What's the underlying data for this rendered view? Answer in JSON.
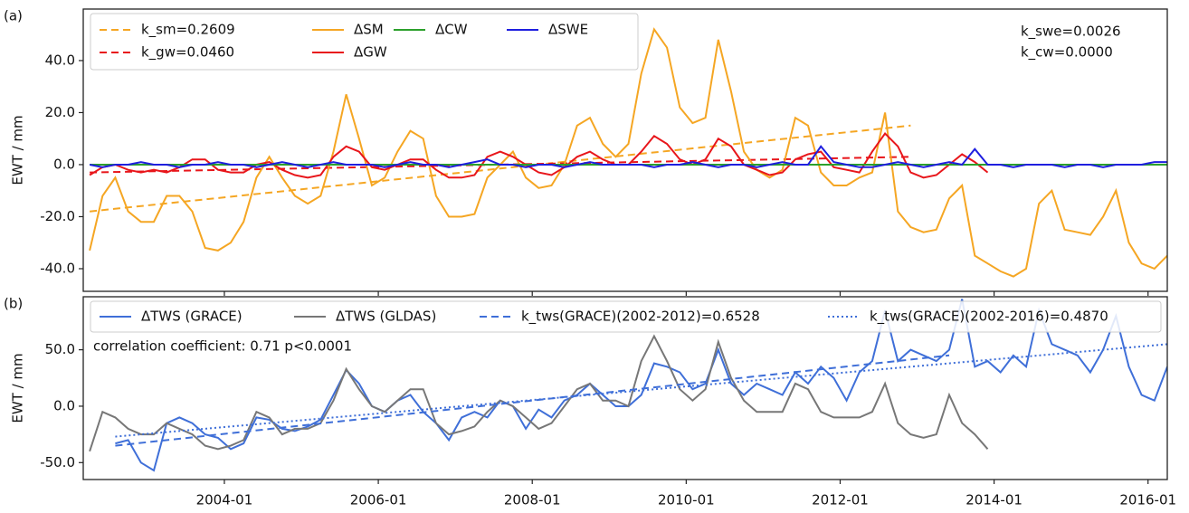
{
  "chart_data": [
    {
      "type": "line",
      "label": "(a)",
      "y_label": "EWT / mm",
      "x": [
        "2002-04",
        "2002-06",
        "2002-08",
        "2002-10",
        "2002-12",
        "2003-02",
        "2003-04",
        "2003-06",
        "2003-08",
        "2003-10",
        "2003-12",
        "2004-02",
        "2004-04",
        "2004-06",
        "2004-08",
        "2004-10",
        "2004-12",
        "2005-02",
        "2005-04",
        "2005-06",
        "2005-08",
        "2005-10",
        "2005-12",
        "2006-02",
        "2006-04",
        "2006-06",
        "2006-08",
        "2006-10",
        "2006-12",
        "2007-02",
        "2007-04",
        "2007-06",
        "2007-08",
        "2007-10",
        "2007-12",
        "2008-02",
        "2008-04",
        "2008-06",
        "2008-08",
        "2008-10",
        "2008-12",
        "2009-02",
        "2009-04",
        "2009-06",
        "2009-08",
        "2009-10",
        "2009-12",
        "2010-02",
        "2010-04",
        "2010-06",
        "2010-08",
        "2010-10",
        "2010-12",
        "2011-02",
        "2011-04",
        "2011-06",
        "2011-08",
        "2011-10",
        "2011-12",
        "2012-02",
        "2012-04",
        "2012-06",
        "2012-08",
        "2012-10",
        "2012-12",
        "2013-02",
        "2013-04",
        "2013-06",
        "2013-08",
        "2013-10",
        "2013-12",
        "2014-02",
        "2014-04",
        "2014-06",
        "2014-08",
        "2014-10",
        "2014-12",
        "2015-02",
        "2015-04",
        "2015-06",
        "2015-08",
        "2015-10",
        "2015-12",
        "2016-02",
        "2016-04"
      ],
      "xlim": [
        "2002-03",
        "2016-04"
      ],
      "ylim": [
        -48.7,
        59.8
      ],
      "yticks": [
        {
          "value": -40,
          "label": "-40.0"
        },
        {
          "value": -20,
          "label": "-20.0"
        },
        {
          "value": 0,
          "label": "0.0"
        },
        {
          "value": 20,
          "label": "20.0"
        },
        {
          "value": 40,
          "label": "40.0"
        }
      ],
      "legend": "upper left",
      "annotations": [
        "k_swe=0.0026",
        "k_cw=0.0000"
      ],
      "series": [
        {
          "name": "k_sm=0.2609",
          "color": "#f5a623",
          "linestyle": "dashed",
          "x": [
            "2002-04",
            "2012-12"
          ],
          "values": [
            -18,
            15
          ]
        },
        {
          "name": "k_gw=0.0460",
          "color": "#e8161b",
          "linestyle": "dashed",
          "x": [
            "2002-04",
            "2012-12"
          ],
          "values": [
            -3,
            3
          ]
        },
        {
          "name": "ΔSM",
          "color": "#f5a623",
          "linestyle": "solid",
          "values": [
            -33,
            -12,
            -5,
            -18,
            -22,
            -22,
            -12,
            -12,
            -18,
            -32,
            -33,
            -30,
            -22,
            -5,
            3,
            -5,
            -12,
            -15,
            -12,
            5,
            27,
            10,
            -8,
            -5,
            5,
            13,
            10,
            -12,
            -20,
            -20,
            -19,
            -5,
            0,
            5,
            -5,
            -9,
            -8,
            0,
            15,
            18,
            8,
            3,
            8,
            35,
            52,
            45,
            22,
            16,
            18,
            48,
            28,
            5,
            -2,
            -5,
            -2,
            18,
            15,
            -3,
            -8,
            -8,
            -5,
            -3,
            20,
            -18,
            -24,
            -26,
            -25,
            -13,
            -8,
            -35,
            -38,
            -41,
            -43,
            -40,
            -15,
            -10,
            -25,
            -26,
            -27,
            -20,
            -10,
            -30,
            -38,
            -40,
            -35
          ]
        },
        {
          "name": "ΔGW",
          "color": "#e8161b",
          "linestyle": "solid",
          "values": [
            -4,
            -1,
            0,
            -2,
            -3,
            -2,
            -3,
            -1,
            2,
            2,
            -2,
            -3,
            -3,
            0,
            1,
            -2,
            -4,
            -5,
            -4,
            3,
            7,
            5,
            -1,
            -2,
            0,
            2,
            2,
            -2,
            -5,
            -5,
            -4,
            3,
            5,
            3,
            0,
            -3,
            -4,
            -1,
            3,
            5,
            2,
            0,
            0,
            5,
            11,
            8,
            2,
            0,
            2,
            10,
            7,
            0,
            -2,
            -4,
            -3,
            2,
            4,
            5,
            -1,
            -2,
            -3,
            5,
            12,
            7,
            -3,
            -5,
            -4,
            0,
            4,
            1,
            -3,
            null,
            null,
            null,
            null,
            null,
            null,
            null,
            null,
            null,
            null,
            null,
            null,
            null,
            null
          ]
        },
        {
          "name": "ΔCW",
          "color": "#2ca02c",
          "linestyle": "solid",
          "values": [
            0,
            0,
            0,
            0,
            0,
            0,
            0,
            0,
            0,
            0,
            0,
            0,
            0,
            0,
            0,
            0,
            0,
            0,
            0,
            0,
            0,
            0,
            0,
            0,
            0,
            0,
            0,
            0,
            0,
            0,
            0,
            0,
            0,
            0,
            0,
            0,
            0,
            0,
            0,
            0,
            0,
            0,
            0,
            0,
            0,
            0,
            0,
            0,
            0,
            0,
            0,
            0,
            0,
            0,
            0,
            0,
            0,
            0,
            0,
            0,
            0,
            0,
            0,
            0,
            0,
            0,
            0,
            0,
            0,
            0,
            0,
            0,
            0,
            0,
            0,
            0,
            0,
            0,
            0,
            0,
            0,
            0,
            0,
            0,
            0
          ]
        },
        {
          "name": "ΔSWE",
          "color": "#1f1fdf",
          "linestyle": "solid",
          "values": [
            0,
            -1,
            0,
            0,
            1,
            0,
            0,
            -1,
            0,
            0,
            1,
            0,
            0,
            -1,
            0,
            1,
            0,
            -1,
            0,
            1,
            0,
            0,
            0,
            -1,
            0,
            1,
            0,
            0,
            -1,
            0,
            1,
            2,
            0,
            0,
            -1,
            0,
            0,
            -1,
            0,
            1,
            0,
            0,
            0,
            0,
            -1,
            0,
            0,
            1,
            0,
            -1,
            0,
            0,
            -1,
            0,
            1,
            0,
            0,
            7,
            1,
            0,
            -1,
            -1,
            0,
            1,
            0,
            -1,
            0,
            1,
            0,
            6,
            0,
            0,
            -1,
            0,
            0,
            0,
            -1,
            0,
            0,
            -1,
            0,
            0,
            0,
            1,
            1
          ]
        }
      ]
    },
    {
      "type": "line",
      "label": "(b)",
      "y_label": "EWT / mm",
      "x": [
        "2002-04",
        "2002-06",
        "2002-08",
        "2002-10",
        "2002-12",
        "2003-02",
        "2003-04",
        "2003-06",
        "2003-08",
        "2003-10",
        "2003-12",
        "2004-02",
        "2004-04",
        "2004-06",
        "2004-08",
        "2004-10",
        "2004-12",
        "2005-02",
        "2005-04",
        "2005-06",
        "2005-08",
        "2005-10",
        "2005-12",
        "2006-02",
        "2006-04",
        "2006-06",
        "2006-08",
        "2006-10",
        "2006-12",
        "2007-02",
        "2007-04",
        "2007-06",
        "2007-08",
        "2007-10",
        "2007-12",
        "2008-02",
        "2008-04",
        "2008-06",
        "2008-08",
        "2008-10",
        "2008-12",
        "2009-02",
        "2009-04",
        "2009-06",
        "2009-08",
        "2009-10",
        "2009-12",
        "2010-02",
        "2010-04",
        "2010-06",
        "2010-08",
        "2010-10",
        "2010-12",
        "2011-02",
        "2011-04",
        "2011-06",
        "2011-08",
        "2011-10",
        "2011-12",
        "2012-02",
        "2012-04",
        "2012-06",
        "2012-08",
        "2012-10",
        "2012-12",
        "2013-02",
        "2013-04",
        "2013-06",
        "2013-08",
        "2013-10",
        "2013-12",
        "2014-02",
        "2014-04",
        "2014-06",
        "2014-08",
        "2014-10",
        "2014-12",
        "2015-02",
        "2015-04",
        "2015-06",
        "2015-08",
        "2015-10",
        "2015-12",
        "2016-02",
        "2016-04"
      ],
      "xlim": [
        "2002-03",
        "2016-04"
      ],
      "xticks": [
        "2004-01",
        "2006-01",
        "2008-01",
        "2010-01",
        "2012-01",
        "2014-01",
        "2016-01"
      ],
      "ylim": [
        -65,
        97
      ],
      "yticks": [
        {
          "value": -50,
          "label": "-50.0"
        },
        {
          "value": 0,
          "label": "0.0"
        },
        {
          "value": 50,
          "label": "50.0"
        }
      ],
      "legend": "upper left",
      "annotations": [
        "correlation coefficient: 0.71  p<0.0001"
      ],
      "series": [
        {
          "name": "ΔTWS (GRACE)",
          "color": "#3f6fd8",
          "linestyle": "solid",
          "values": [
            null,
            null,
            -33,
            -30,
            -50,
            -57,
            -15,
            -10,
            -15,
            -25,
            -28,
            -38,
            -33,
            -10,
            -12,
            -20,
            -22,
            -18,
            -12,
            10,
            32,
            20,
            0,
            -5,
            5,
            10,
            -5,
            -15,
            -30,
            -10,
            -5,
            -10,
            5,
            0,
            -20,
            -3,
            -10,
            5,
            10,
            20,
            10,
            0,
            0,
            10,
            38,
            35,
            30,
            15,
            20,
            50,
            20,
            10,
            20,
            15,
            10,
            30,
            20,
            35,
            25,
            5,
            30,
            40,
            85,
            40,
            50,
            45,
            40,
            50,
            95,
            35,
            40,
            30,
            45,
            35,
            85,
            55,
            50,
            45,
            30,
            50,
            80,
            35,
            10,
            5,
            35
          ]
        },
        {
          "name": "ΔTWS (GLDAS)",
          "color": "#777777",
          "linestyle": "solid",
          "values": [
            -40,
            -5,
            -10,
            -20,
            -25,
            -25,
            -15,
            -20,
            -25,
            -35,
            -38,
            -35,
            -30,
            -5,
            -10,
            -25,
            -20,
            -20,
            -15,
            5,
            33,
            15,
            0,
            -5,
            5,
            15,
            15,
            -15,
            -25,
            -22,
            -18,
            -5,
            5,
            0,
            -10,
            -20,
            -15,
            0,
            15,
            20,
            5,
            5,
            0,
            40,
            62,
            40,
            15,
            5,
            15,
            57,
            25,
            5,
            -5,
            -5,
            -5,
            20,
            15,
            -5,
            -10,
            -10,
            -10,
            -5,
            20,
            -15,
            -25,
            -28,
            -25,
            10,
            -15,
            -25,
            -38,
            null,
            null,
            null,
            null,
            null,
            null,
            null,
            null,
            null,
            null,
            null,
            null,
            null,
            null
          ]
        },
        {
          "name": "k_tws(GRACE)(2002-2012)=0.6528",
          "color": "#3f6fd8",
          "linestyle": "dashed",
          "x": [
            "2002-08",
            "2013-06"
          ],
          "values": [
            -35,
            45
          ]
        },
        {
          "name": "k_tws(GRACE)(2002-2016)=0.4870",
          "color": "#3f6fd8",
          "linestyle": "dotted",
          "x": [
            "2002-08",
            "2016-04"
          ],
          "values": [
            -27,
            55
          ]
        }
      ]
    }
  ]
}
